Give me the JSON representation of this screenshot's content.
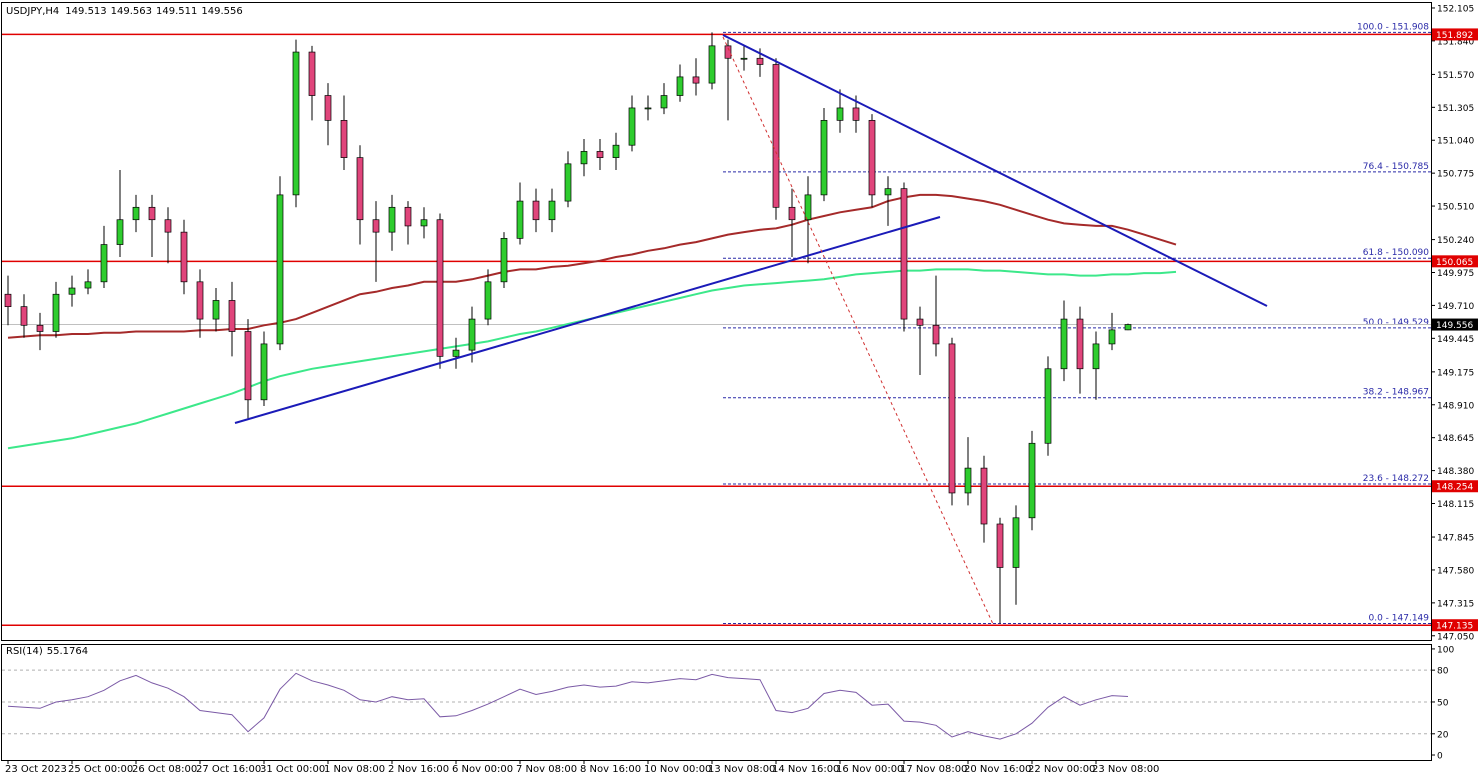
{
  "chart_data": {
    "type": "candlestick",
    "symbol": "USDJPY,H4",
    "categories": [
      "23 Oct 2023",
      null,
      null,
      null,
      "25 Oct 00:00",
      null,
      null,
      null,
      "26 Oct 08:00",
      null,
      null,
      null,
      "27 Oct 16:00",
      null,
      null,
      null,
      "31 Oct 00:00",
      null,
      null,
      null,
      "1 Nov 08:00",
      null,
      null,
      null,
      "2 Nov 16:00",
      null,
      null,
      null,
      "6 Nov 00:00",
      null,
      null,
      null,
      "7 Nov 08:00",
      null,
      null,
      null,
      "8 Nov 16:00",
      null,
      null,
      null,
      "10 Nov 00:00",
      null,
      null,
      null,
      "13 Nov 08:00",
      null,
      null,
      null,
      "14 Nov 16:00",
      null,
      null,
      null,
      "16 Nov 00:00",
      null,
      null,
      null,
      "17 Nov 08:00",
      null,
      null,
      null,
      "20 Nov 16:00",
      null,
      null,
      null,
      "22 Nov 00:00",
      null,
      null,
      null,
      "23 Nov 08:00",
      null,
      null,
      null,
      null,
      null
    ],
    "open": [
      149.8,
      149.7,
      149.55,
      149.5,
      149.8,
      149.85,
      149.9,
      150.2,
      150.4,
      150.5,
      150.4,
      150.3,
      149.9,
      149.6,
      149.75,
      149.5,
      148.95,
      149.4,
      150.6,
      151.75,
      151.4,
      151.2,
      150.9,
      150.4,
      150.3,
      150.5,
      150.35,
      150.4,
      149.3,
      149.35,
      149.6,
      149.9,
      150.25,
      150.55,
      150.4,
      150.55,
      150.85,
      150.95,
      150.9,
      151.0,
      151.3,
      151.3,
      151.4,
      151.55,
      151.5,
      151.8,
      151.7,
      151.7,
      151.65,
      150.5,
      150.4,
      150.6,
      151.2,
      151.3,
      151.2,
      150.6,
      150.65,
      149.6,
      149.55,
      149.4,
      148.2,
      148.4,
      147.95,
      147.6,
      148.0,
      148.6,
      149.2,
      149.6,
      149.2,
      149.4,
      149.513,
      null,
      null,
      null
    ],
    "high": [
      149.95,
      149.8,
      149.65,
      149.9,
      149.95,
      150.0,
      150.35,
      150.8,
      150.6,
      150.6,
      150.5,
      150.4,
      150.0,
      149.85,
      149.9,
      149.6,
      149.5,
      150.75,
      151.85,
      151.8,
      151.5,
      151.4,
      151.0,
      150.55,
      150.6,
      150.55,
      150.5,
      150.45,
      149.45,
      149.7,
      150.0,
      150.3,
      150.7,
      150.65,
      150.65,
      150.95,
      151.05,
      151.05,
      151.1,
      151.4,
      151.4,
      151.5,
      151.65,
      151.7,
      151.908,
      151.85,
      151.8,
      151.78,
      151.7,
      150.65,
      150.75,
      151.3,
      151.45,
      151.4,
      151.25,
      150.75,
      150.7,
      149.7,
      149.95,
      149.45,
      148.65,
      148.5,
      148.0,
      148.1,
      148.7,
      149.3,
      149.75,
      149.7,
      149.5,
      149.65,
      149.563,
      null,
      null,
      null
    ],
    "low": [
      149.55,
      149.45,
      149.35,
      149.45,
      149.7,
      149.8,
      149.85,
      150.1,
      150.3,
      150.1,
      150.05,
      149.8,
      149.45,
      149.5,
      149.3,
      148.8,
      148.9,
      149.35,
      150.5,
      151.2,
      151.0,
      150.8,
      150.2,
      149.9,
      150.15,
      150.2,
      150.25,
      149.2,
      149.2,
      149.25,
      149.55,
      149.85,
      150.2,
      150.3,
      150.3,
      150.5,
      150.75,
      150.8,
      150.8,
      150.95,
      151.2,
      151.25,
      151.35,
      151.4,
      151.45,
      151.2,
      151.6,
      151.55,
      150.4,
      150.1,
      150.05,
      150.55,
      151.1,
      151.1,
      150.5,
      150.35,
      149.5,
      149.15,
      149.3,
      148.1,
      148.1,
      147.8,
      147.149,
      147.3,
      147.9,
      148.5,
      149.1,
      149.0,
      148.95,
      149.35,
      149.511,
      null,
      null,
      null
    ],
    "close": [
      149.7,
      149.55,
      149.5,
      149.8,
      149.85,
      149.9,
      150.2,
      150.4,
      150.5,
      150.4,
      150.3,
      149.9,
      149.6,
      149.75,
      149.5,
      148.95,
      149.4,
      150.6,
      151.75,
      151.4,
      151.2,
      150.9,
      150.4,
      150.3,
      150.5,
      150.35,
      150.4,
      149.3,
      149.35,
      149.6,
      149.9,
      150.25,
      150.55,
      150.4,
      150.55,
      150.85,
      150.95,
      150.9,
      151.0,
      151.3,
      151.3,
      151.4,
      151.55,
      151.5,
      151.8,
      151.7,
      151.7,
      151.65,
      150.5,
      150.4,
      150.6,
      151.2,
      151.3,
      151.2,
      150.6,
      150.65,
      149.6,
      149.55,
      149.4,
      148.2,
      148.4,
      147.95,
      147.6,
      148.0,
      148.6,
      149.2,
      149.6,
      149.2,
      149.4,
      149.513,
      149.556,
      null,
      null,
      null
    ],
    "up_color": "#2ecc2e",
    "down_color": "#e0457b",
    "moving_averages": [
      {
        "color": "#a52a2a",
        "values": [
          149.45,
          149.46,
          149.47,
          149.47,
          149.48,
          149.48,
          149.49,
          149.49,
          149.5,
          149.5,
          149.5,
          149.5,
          149.51,
          149.51,
          149.52,
          149.52,
          149.55,
          149.57,
          149.6,
          149.65,
          149.7,
          149.75,
          149.8,
          149.82,
          149.85,
          149.87,
          149.9,
          149.9,
          149.9,
          149.92,
          149.95,
          149.98,
          150.0,
          150.0,
          150.02,
          150.03,
          150.05,
          150.07,
          150.1,
          150.12,
          150.15,
          150.17,
          150.2,
          150.22,
          150.25,
          150.28,
          150.3,
          150.32,
          150.33,
          150.36,
          150.4,
          150.43,
          150.46,
          150.48,
          150.5,
          150.55,
          150.58,
          150.6,
          150.6,
          150.59,
          150.57,
          150.55,
          150.52,
          150.48,
          150.44,
          150.4,
          150.37,
          150.36,
          150.35,
          150.35,
          150.32,
          150.28,
          150.24,
          150.2
        ]
      },
      {
        "color": "#3ce88a",
        "values": [
          148.56,
          148.58,
          148.6,
          148.62,
          148.64,
          148.67,
          148.7,
          148.73,
          148.76,
          148.8,
          148.84,
          148.88,
          148.92,
          148.96,
          149.0,
          149.05,
          149.1,
          149.14,
          149.17,
          149.2,
          149.22,
          149.24,
          149.26,
          149.28,
          149.3,
          149.32,
          149.34,
          149.36,
          149.38,
          149.4,
          149.42,
          149.45,
          149.48,
          149.5,
          149.53,
          149.56,
          149.59,
          149.62,
          149.65,
          149.68,
          149.71,
          149.74,
          149.77,
          149.8,
          149.83,
          149.85,
          149.87,
          149.88,
          149.89,
          149.9,
          149.91,
          149.92,
          149.94,
          149.96,
          149.97,
          149.98,
          149.99,
          149.99,
          150.0,
          150.0,
          150.0,
          149.99,
          149.99,
          149.98,
          149.97,
          149.96,
          149.96,
          149.95,
          149.95,
          149.96,
          149.96,
          149.97,
          149.97,
          149.98
        ]
      }
    ],
    "ylim": [
      147.016,
      152.145
    ],
    "yticks": [
      152.105,
      {
        "value": 151.84,
        "label": "151.840"
      },
      {
        "value": 151.57,
        "label": "151.570"
      },
      151.305,
      {
        "value": 151.04,
        "label": "151.040"
      },
      150.775,
      {
        "value": 150.51,
        "label": "150.510"
      },
      {
        "value": 150.24,
        "label": "150.240"
      },
      149.975,
      {
        "value": 149.71,
        "label": "149.710"
      },
      149.445,
      149.175,
      {
        "value": 148.91,
        "label": "148.910"
      },
      148.645,
      {
        "value": 148.38,
        "label": "148.380"
      },
      148.115,
      147.845,
      {
        "value": 147.58,
        "label": "147.580"
      },
      147.315,
      {
        "value": 147.05,
        "label": "147.050"
      }
    ],
    "levels": [
      151.892,
      150.065,
      148.254,
      147.135
    ],
    "level_color": "#e00000",
    "fib_levels": [
      {
        "label": "100.0 - 151.908",
        "price": 151.908
      },
      {
        "label": "76.4 - 150.785",
        "price": 150.785
      },
      {
        "label": "61.8 - 150.090",
        "price": 150.09
      },
      {
        "label": "50.0 - 149.529",
        "price": 149.529
      },
      {
        "label": "38.2 - 148.967",
        "price": 148.967
      },
      {
        "label": "23.6 - 148.272",
        "price": 148.272
      },
      {
        "label": "0.0 - 147.149",
        "price": 147.149
      }
    ],
    "fib_color": "#2a2aa8",
    "rsi": {
      "name": "RSI(14)",
      "color": "#7b5aa6",
      "values": [
        46,
        45,
        44,
        50,
        52,
        55,
        61,
        70,
        75,
        68,
        63,
        55,
        42,
        40,
        38,
        22,
        35,
        62,
        77,
        70,
        66,
        61,
        52,
        50,
        55,
        52,
        53,
        36,
        37,
        42,
        48,
        55,
        62,
        57,
        60,
        64,
        66,
        64,
        65,
        69,
        68,
        70,
        72,
        71,
        76,
        73,
        72,
        71,
        42,
        40,
        44,
        58,
        61,
        59,
        47,
        48,
        32,
        31,
        28,
        17,
        22,
        18,
        15,
        20,
        30,
        45,
        55,
        47,
        52,
        56,
        55.1764,
        null,
        null,
        null
      ],
      "ylim": [
        -4.7,
        103.7
      ],
      "yticks": [
        100,
        80,
        50,
        20,
        0
      ],
      "dashed_levels": [
        80,
        50,
        20
      ]
    }
  }
}
